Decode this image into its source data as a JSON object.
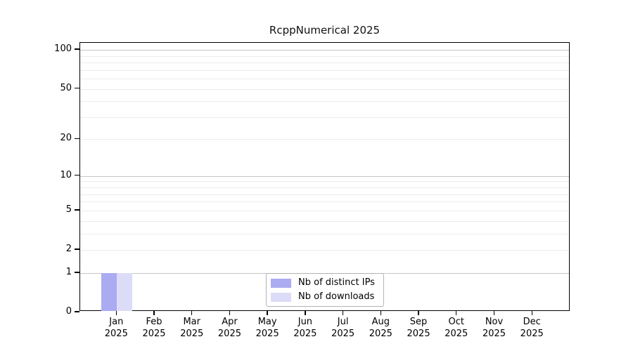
{
  "chart_data": {
    "type": "bar",
    "title": "RcppNumerical 2025",
    "categories": [
      "Jan",
      "Feb",
      "Mar",
      "Apr",
      "May",
      "Jun",
      "Jul",
      "Aug",
      "Sep",
      "Oct",
      "Nov",
      "Dec"
    ],
    "category_year": "2025",
    "series": [
      {
        "name": "Nb of distinct IPs",
        "color": "#ababf2",
        "values": [
          1,
          0,
          0,
          0,
          0,
          0,
          0,
          0,
          0,
          0,
          0,
          0
        ]
      },
      {
        "name": "Nb of downloads",
        "color": "#dcdcf8",
        "values": [
          1,
          0,
          0,
          0,
          0,
          0,
          0,
          0,
          0,
          0,
          0,
          0
        ]
      }
    ],
    "xlabel": "",
    "ylabel": "",
    "yaxis": {
      "scale": "log1p",
      "tick_values": [
        0,
        1,
        2,
        5,
        10,
        20,
        50,
        100
      ],
      "major_gridlines": [
        1,
        10,
        100
      ],
      "minor_gridlines": [
        2,
        3,
        4,
        5,
        6,
        7,
        8,
        9,
        20,
        30,
        40,
        50,
        60,
        70,
        80,
        90
      ],
      "ylim": [
        0,
        114
      ]
    },
    "grid": true,
    "legend": {
      "position": "bottom-center",
      "entries": [
        "Nb of distinct IPs",
        "Nb of downloads"
      ]
    }
  },
  "colors": {
    "background": "#ffffff",
    "axis": "#000000",
    "text": "#000000",
    "major_grid": "#c6c6c6",
    "minor_grid": "#ededed",
    "legend_border": "#b3b3b3",
    "bar_distinct_ips": "#ababf2",
    "bar_downloads": "#dcdcf8"
  }
}
